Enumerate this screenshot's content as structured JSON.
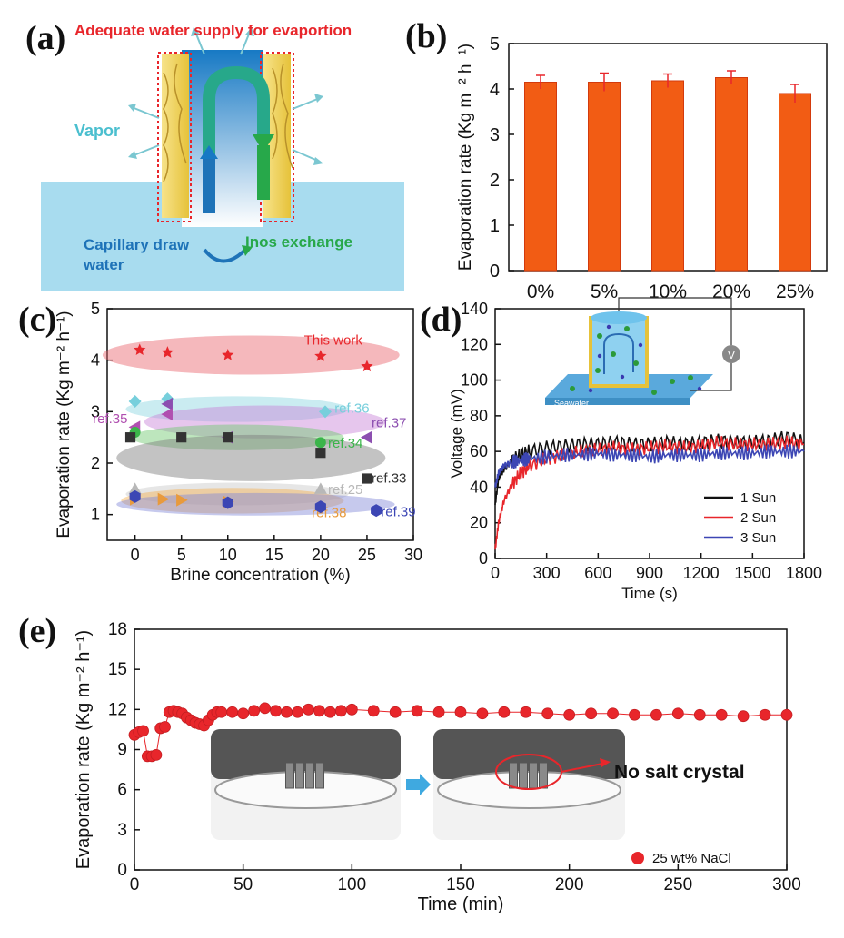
{
  "panel_labels": {
    "a": "(a)",
    "b": "(b)",
    "c": "(c)",
    "d": "(d)",
    "e": "(e)"
  },
  "schematic": {
    "title": "Adequate water supply for evaportion",
    "vapor": "Vapor",
    "capillary_line1": "Capillary draw",
    "capillary_line2": "water",
    "ions": "Inos exchange",
    "colors": {
      "title": "#e8262b",
      "vapor": "#4bbfcf",
      "capillary": "#1e73b8",
      "ions": "#27a84a"
    }
  },
  "chart_data": [
    {
      "id": "b",
      "type": "bar",
      "categories": [
        "0%",
        "5%",
        "10%",
        "20%",
        "25%"
      ],
      "values": [
        4.15,
        4.15,
        4.18,
        4.25,
        3.9
      ],
      "errors": [
        0.15,
        0.2,
        0.15,
        0.15,
        0.2
      ],
      "ylabel": "Evaporation rate (Kg m⁻² h⁻¹)",
      "ylim": [
        0,
        5
      ],
      "yticks": [
        0,
        1,
        2,
        3,
        4,
        5
      ],
      "bar_color": "#f25c14"
    },
    {
      "id": "c",
      "type": "scatter",
      "xlabel": "Brine concentration (%)",
      "ylabel": "Evaporation rate (Kg m⁻² h⁻¹)",
      "xlim": [
        -3,
        30
      ],
      "ylim": [
        0.5,
        5
      ],
      "xticks": [
        0,
        5,
        10,
        15,
        20,
        25,
        30
      ],
      "yticks": [
        1,
        2,
        3,
        4,
        5
      ],
      "series": [
        {
          "name": "This work",
          "marker": "star",
          "color": "#e8262b",
          "x": [
            0.5,
            3.5,
            10,
            20,
            25
          ],
          "y": [
            4.2,
            4.15,
            4.1,
            4.08,
            3.88
          ]
        },
        {
          "name": "ref.36",
          "marker": "diamond",
          "color": "#77cfdc",
          "x": [
            0,
            3.5,
            20.5
          ],
          "y": [
            3.2,
            3.25,
            3.0
          ]
        },
        {
          "name": "ref.37",
          "marker": "triangle-left",
          "color": "#8c4fb0",
          "x": [
            3.5,
            10,
            25
          ],
          "y": [
            3.15,
            2.5,
            2.5
          ]
        },
        {
          "name": "ref.35",
          "marker": "triangle-left",
          "color": "#b04fb0",
          "x": [
            0,
            3.5
          ],
          "y": [
            2.7,
            2.95
          ]
        },
        {
          "name": "ref.34",
          "marker": "circle",
          "color": "#3bb54a",
          "x": [
            0,
            20
          ],
          "y": [
            2.6,
            2.4
          ]
        },
        {
          "name": "ref.33",
          "marker": "square",
          "color": "#333333",
          "x": [
            -0.5,
            5,
            10,
            20,
            25
          ],
          "y": [
            2.5,
            2.5,
            2.5,
            2.2,
            1.7
          ]
        },
        {
          "name": "ref.25",
          "marker": "triangle-up",
          "color": "#b8b8b8",
          "x": [
            0,
            20
          ],
          "y": [
            1.5,
            1.5
          ]
        },
        {
          "name": "ref.38",
          "marker": "triangle-right",
          "color": "#e89a3c",
          "x": [
            0,
            3,
            5,
            10
          ],
          "y": [
            1.3,
            1.3,
            1.28,
            1.25
          ]
        },
        {
          "name": "ref.39",
          "marker": "hexagon",
          "color": "#3c46b4",
          "x": [
            0,
            10,
            20,
            26
          ],
          "y": [
            1.35,
            1.23,
            1.15,
            1.08
          ]
        }
      ]
    },
    {
      "id": "d",
      "type": "line",
      "xlabel": "Time (s)",
      "ylabel": "Voltage (mV)",
      "xlim": [
        0,
        1800
      ],
      "ylim": [
        0,
        140
      ],
      "xticks": [
        0,
        300,
        600,
        900,
        1200,
        1500,
        1800
      ],
      "yticks": [
        0,
        20,
        40,
        60,
        80,
        100,
        120,
        140
      ],
      "legend": "bottom-right",
      "series": [
        {
          "name": "1 Sun",
          "color": "#111111",
          "x": [
            0,
            20,
            50,
            100,
            150,
            200,
            300,
            400,
            500,
            600,
            700,
            800,
            900,
            1000,
            1100,
            1200,
            1300,
            1400,
            1500,
            1600,
            1700,
            1800
          ],
          "y": [
            30,
            45,
            50,
            55,
            58,
            60,
            62,
            63,
            64,
            64,
            65,
            64,
            64,
            65,
            64,
            65,
            66,
            65,
            65,
            66,
            68,
            65
          ]
        },
        {
          "name": "2 Sun",
          "color": "#e8262b",
          "x": [
            0,
            20,
            50,
            100,
            150,
            200,
            300,
            400,
            500,
            600,
            700,
            800,
            900,
            1000,
            1100,
            1200,
            1300,
            1400,
            1500,
            1600,
            1700,
            1800
          ],
          "y": [
            5,
            20,
            32,
            42,
            48,
            52,
            56,
            58,
            60,
            61,
            62,
            61,
            62,
            63,
            62,
            63,
            65,
            64,
            64,
            64,
            65,
            64
          ]
        },
        {
          "name": "3 Sun",
          "color": "#3c46b4",
          "x": [
            0,
            20,
            50,
            100,
            150,
            200,
            300,
            400,
            500,
            600,
            700,
            800,
            900,
            1000,
            1100,
            1200,
            1300,
            1400,
            1500,
            1600,
            1700,
            1800
          ],
          "y": [
            40,
            48,
            52,
            54,
            55,
            56,
            57,
            58,
            58,
            59,
            58,
            58,
            57,
            58,
            58,
            58,
            59,
            59,
            59,
            60,
            60,
            60
          ]
        }
      ],
      "inset": {
        "seawater": "Seawater",
        "meter": "V"
      }
    },
    {
      "id": "e",
      "type": "scatter",
      "xlabel": "Time (min)",
      "ylabel": "Evaporation rate (Kg m⁻² h⁻¹)",
      "xlim": [
        0,
        300
      ],
      "ylim": [
        0,
        18
      ],
      "xticks": [
        0,
        50,
        100,
        150,
        200,
        250,
        300
      ],
      "yticks": [
        0,
        3,
        6,
        9,
        12,
        15,
        18
      ],
      "legend": "bottom-right",
      "series": [
        {
          "name": "25 wt% NaCl",
          "color": "#e8262b",
          "x": [
            0,
            2,
            4,
            6,
            8,
            10,
            12,
            14,
            16,
            18,
            20,
            22,
            24,
            26,
            28,
            30,
            32,
            34,
            36,
            38,
            40,
            45,
            50,
            55,
            60,
            65,
            70,
            75,
            80,
            85,
            90,
            95,
            100,
            110,
            120,
            130,
            140,
            150,
            160,
            170,
            180,
            190,
            200,
            210,
            220,
            230,
            240,
            250,
            260,
            270,
            280,
            290,
            300
          ],
          "y": [
            10.1,
            10.3,
            10.4,
            8.5,
            8.5,
            8.6,
            10.6,
            10.7,
            11.8,
            11.9,
            11.8,
            11.7,
            11.4,
            11.2,
            11.0,
            10.9,
            10.8,
            11.2,
            11.6,
            11.8,
            11.8,
            11.8,
            11.7,
            11.9,
            12.1,
            11.9,
            11.8,
            11.8,
            12.0,
            11.9,
            11.8,
            11.9,
            12.0,
            11.9,
            11.8,
            11.9,
            11.8,
            11.8,
            11.7,
            11.8,
            11.8,
            11.7,
            11.6,
            11.7,
            11.7,
            11.6,
            11.6,
            11.7,
            11.6,
            11.6,
            11.5,
            11.6,
            11.6
          ]
        }
      ],
      "photo_caption": "No salt crystal"
    }
  ]
}
